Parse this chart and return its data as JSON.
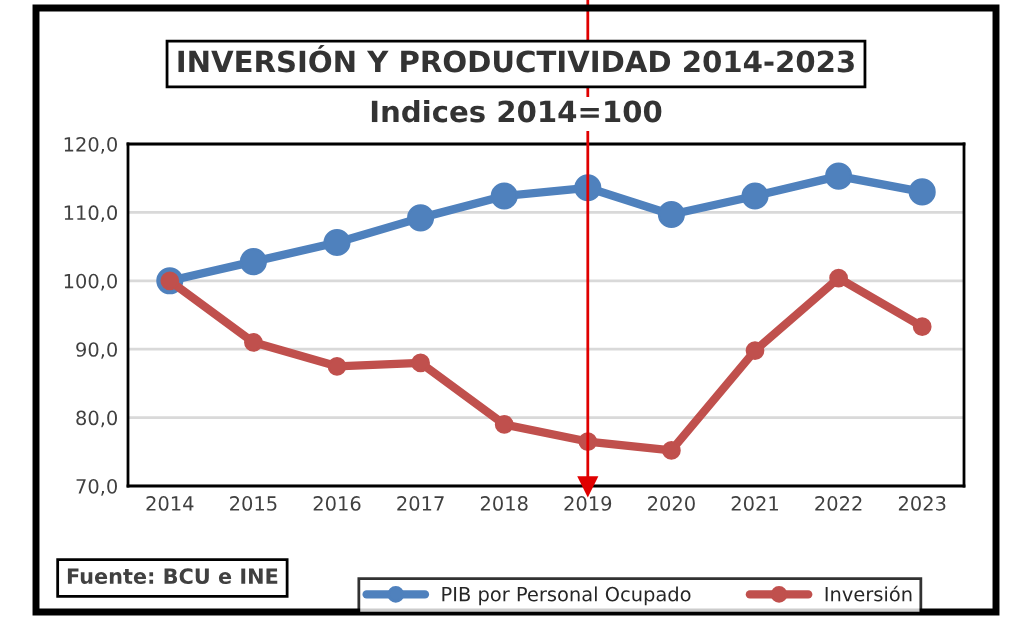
{
  "chart_data": {
    "type": "line",
    "title": "INVERSIÓN Y PRODUCTIVIDAD 2014-2023",
    "subtitle": "Indices 2014=100",
    "categories": [
      "2014",
      "2015",
      "2016",
      "2017",
      "2018",
      "2019",
      "2020",
      "2021",
      "2022",
      "2023"
    ],
    "series": [
      {
        "name": "PIB por Personal Ocupado",
        "color": "#4f81bd",
        "values": [
          100.0,
          102.8,
          105.6,
          109.2,
          112.4,
          113.6,
          109.7,
          112.4,
          115.3,
          113.0
        ]
      },
      {
        "name": "Inversión",
        "color": "#c0504d",
        "values": [
          100.0,
          91.0,
          87.5,
          88.0,
          79.0,
          76.5,
          75.2,
          89.8,
          100.4,
          93.3
        ]
      }
    ],
    "ylim": [
      70,
      120
    ],
    "yticks": [
      {
        "value": 70,
        "label": "70,0"
      },
      {
        "value": 80,
        "label": "80,0"
      },
      {
        "value": 90,
        "label": "90,0"
      },
      {
        "value": 100,
        "label": "100,0"
      },
      {
        "value": 110,
        "label": "110,0"
      },
      {
        "value": 120,
        "label": "120,0"
      }
    ],
    "ref_lines": [
      {
        "axis": "x",
        "value": "2019",
        "color": "#e00000"
      }
    ],
    "annotations": [
      "Fuente: BCU e INE"
    ],
    "grid": "y",
    "legend": "bottom",
    "marker": "circle",
    "line_style": "solid"
  }
}
